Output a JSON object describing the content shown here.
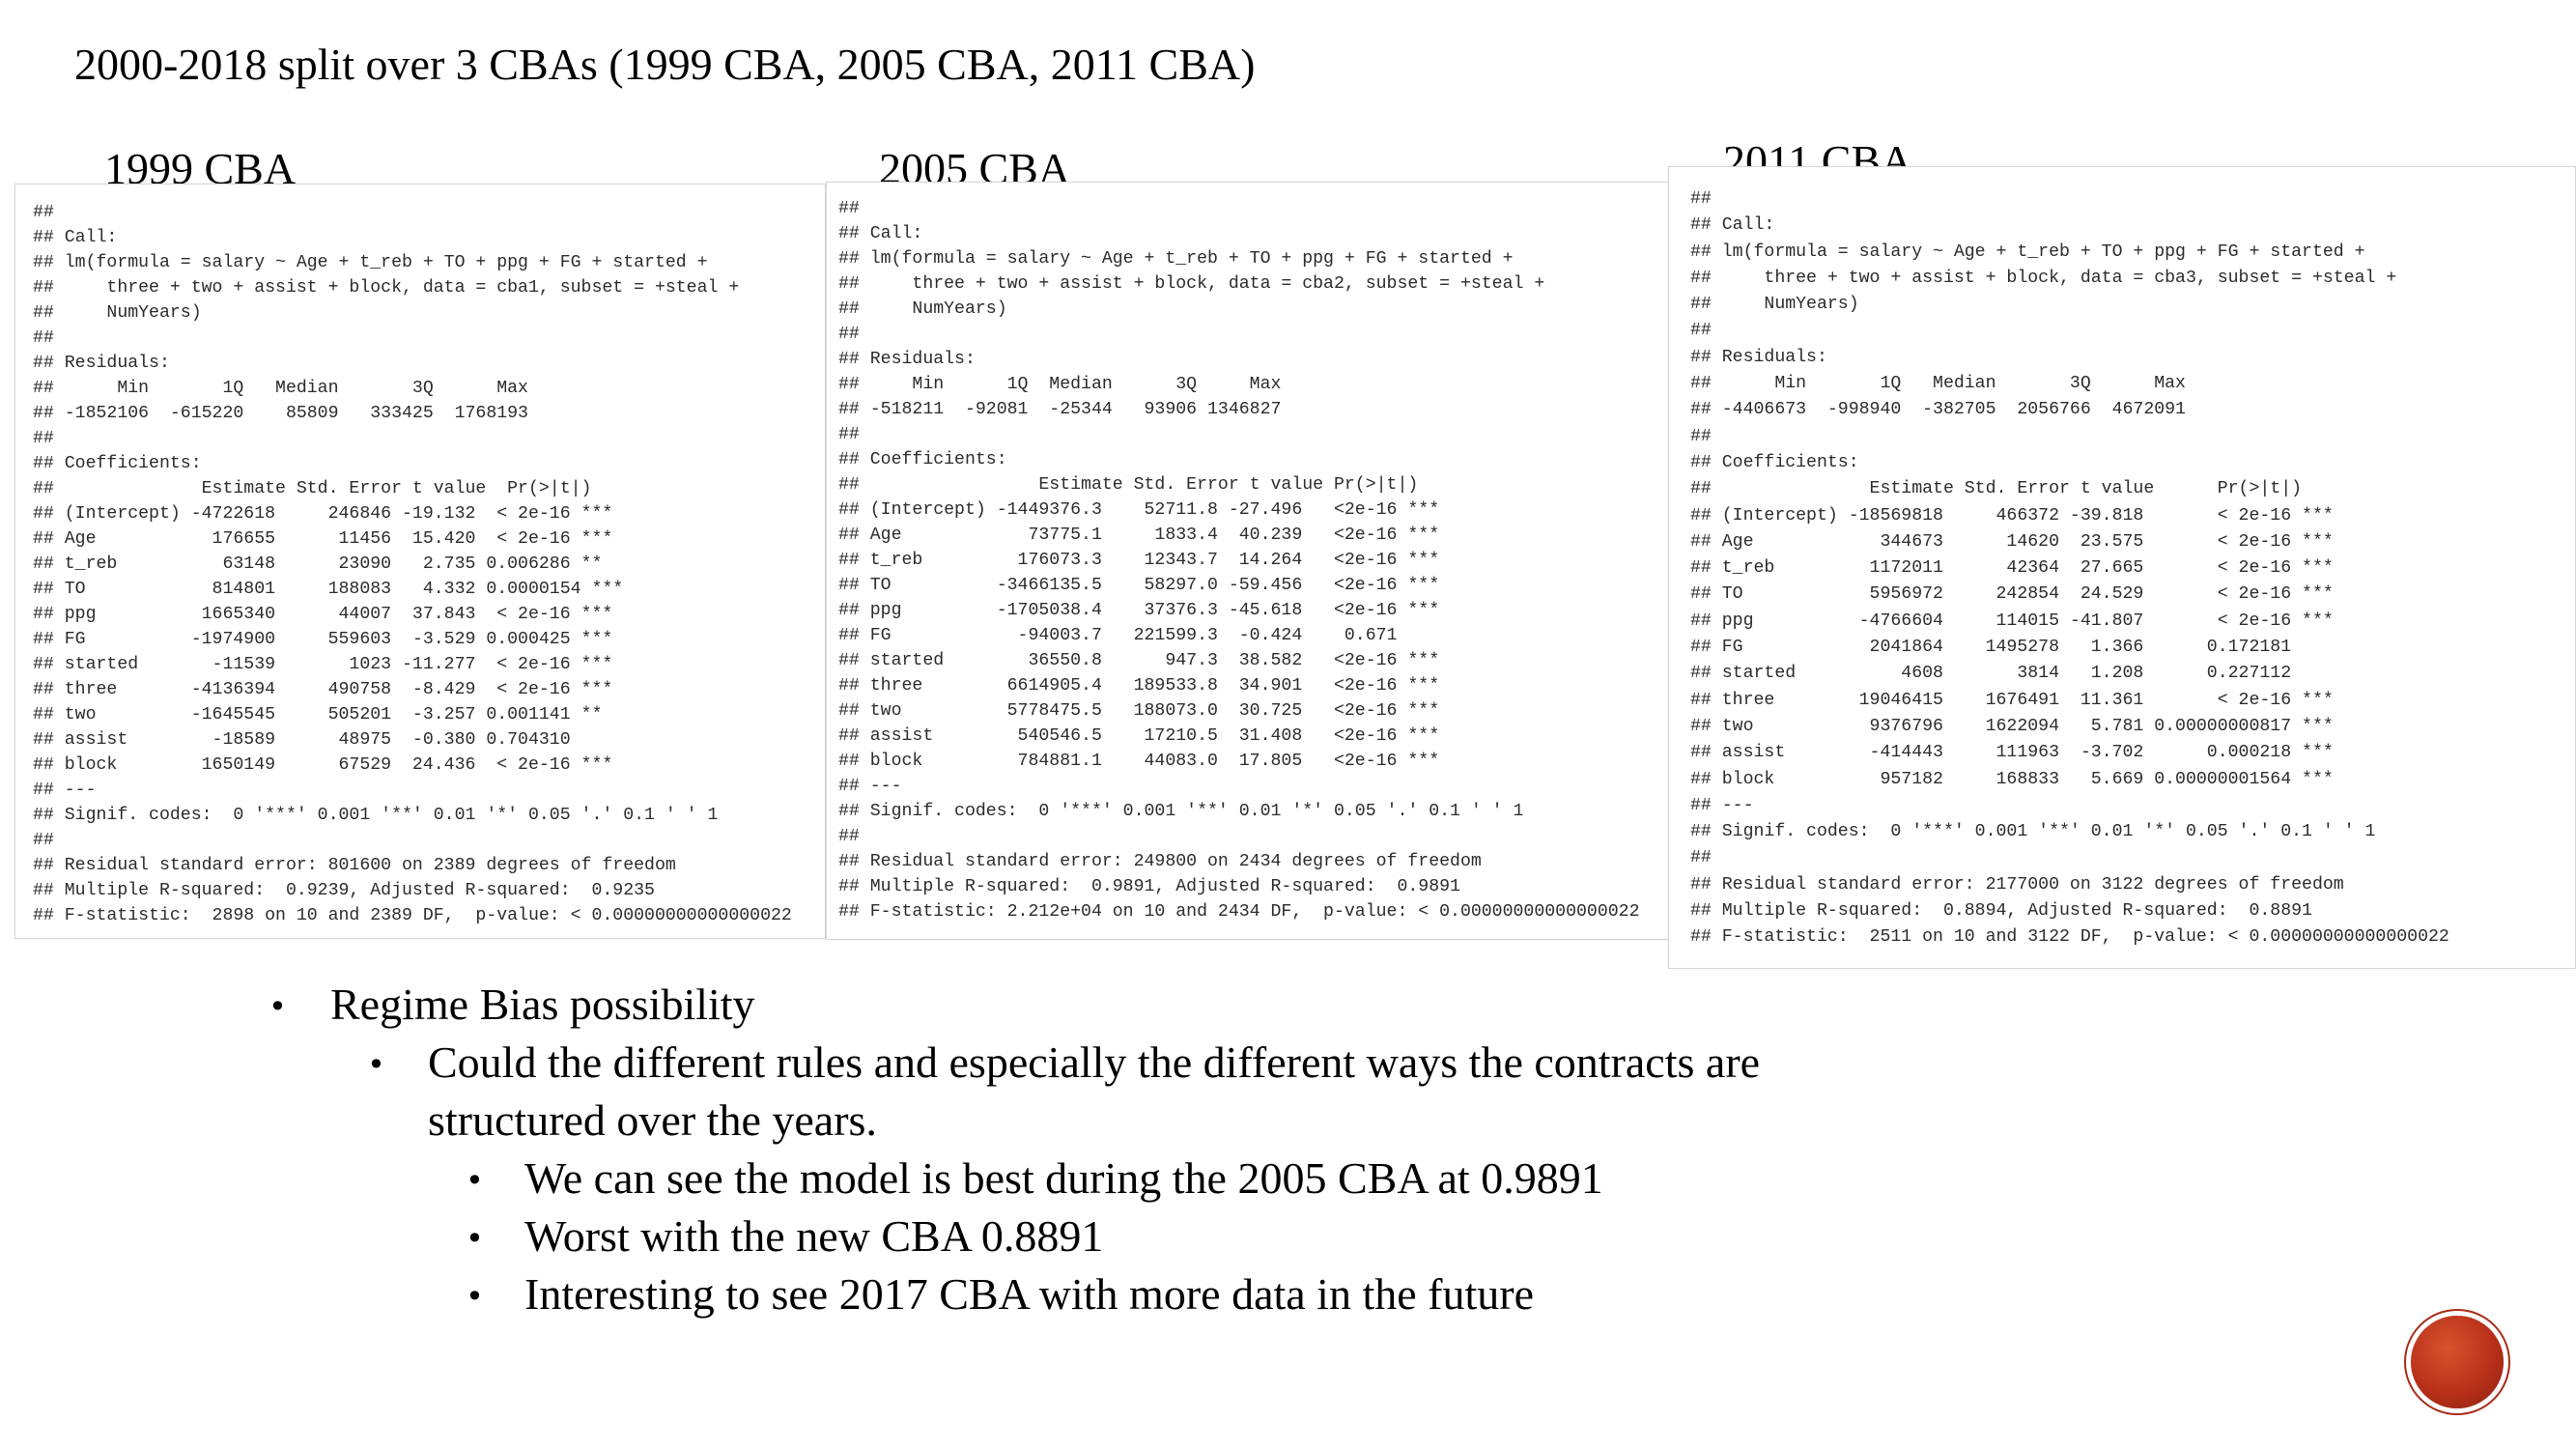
{
  "title": "2000-2018 split over 3 CBAs (1999 CBA, 2005 CBA, 2011 CBA)",
  "panels": [
    {
      "heading": "1999 CBA",
      "output": "##\n## Call:\n## lm(formula = salary ~ Age + t_reb + TO + ppg + FG + started +\n##     three + two + assist + block, data = cba1, subset = +steal +\n##     NumYears)\n##\n## Residuals:\n##      Min       1Q   Median       3Q      Max\n## -1852106  -615220    85809   333425  1768193\n##\n## Coefficients:\n##              Estimate Std. Error t value  Pr(>|t|)\n## (Intercept) -4722618     246846 -19.132  < 2e-16 ***\n## Age           176655      11456  15.420  < 2e-16 ***\n## t_reb          63148      23090   2.735 0.006286 **\n## TO            814801     188083   4.332 0.0000154 ***\n## ppg          1665340      44007  37.843  < 2e-16 ***\n## FG          -1974900     559603  -3.529 0.000425 ***\n## started       -11539       1023 -11.277  < 2e-16 ***\n## three       -4136394     490758  -8.429  < 2e-16 ***\n## two         -1645545     505201  -3.257 0.001141 **\n## assist        -18589      48975  -0.380 0.704310\n## block        1650149      67529  24.436  < 2e-16 ***\n## ---\n## Signif. codes:  0 '***' 0.001 '**' 0.01 '*' 0.05 '.' 0.1 ' ' 1\n##\n## Residual standard error: 801600 on 2389 degrees of freedom\n## Multiple R-squared:  0.9239, Adjusted R-squared:  0.9235\n## F-statistic:  2898 on 10 and 2389 DF,  p-value: < 0.00000000000000022"
    },
    {
      "heading": "2005 CBA",
      "output": "##\n## Call:\n## lm(formula = salary ~ Age + t_reb + TO + ppg + FG + started +\n##     three + two + assist + block, data = cba2, subset = +steal +\n##     NumYears)\n##\n## Residuals:\n##     Min      1Q  Median      3Q     Max\n## -518211  -92081  -25344   93906 1346827\n##\n## Coefficients:\n##                 Estimate Std. Error t value Pr(>|t|)\n## (Intercept) -1449376.3    52711.8 -27.496   <2e-16 ***\n## Age            73775.1     1833.4  40.239   <2e-16 ***\n## t_reb         176073.3    12343.7  14.264   <2e-16 ***\n## TO          -3466135.5    58297.0 -59.456   <2e-16 ***\n## ppg         -1705038.4    37376.3 -45.618   <2e-16 ***\n## FG            -94003.7   221599.3  -0.424    0.671\n## started        36550.8      947.3  38.582   <2e-16 ***\n## three        6614905.4   189533.8  34.901   <2e-16 ***\n## two          5778475.5   188073.0  30.725   <2e-16 ***\n## assist        540546.5    17210.5  31.408   <2e-16 ***\n## block         784881.1    44083.0  17.805   <2e-16 ***\n## ---\n## Signif. codes:  0 '***' 0.001 '**' 0.01 '*' 0.05 '.' 0.1 ' ' 1\n##\n## Residual standard error: 249800 on 2434 degrees of freedom\n## Multiple R-squared:  0.9891, Adjusted R-squared:  0.9891\n## F-statistic: 2.212e+04 on 10 and 2434 DF,  p-value: < 0.00000000000000022"
    },
    {
      "heading": "2011 CBA",
      "output": "##\n## Call:\n## lm(formula = salary ~ Age + t_reb + TO + ppg + FG + started +\n##     three + two + assist + block, data = cba3, subset = +steal +\n##     NumYears)\n##\n## Residuals:\n##      Min       1Q   Median       3Q      Max\n## -4406673  -998940  -382705  2056766  4672091\n##\n## Coefficients:\n##               Estimate Std. Error t value      Pr(>|t|)\n## (Intercept) -18569818     466372 -39.818       < 2e-16 ***\n## Age            344673      14620  23.575       < 2e-16 ***\n## t_reb         1172011      42364  27.665       < 2e-16 ***\n## TO            5956972     242854  24.529       < 2e-16 ***\n## ppg          -4766604     114015 -41.807       < 2e-16 ***\n## FG            2041864    1495278   1.366      0.172181\n## started          4608       3814   1.208      0.227112\n## three        19046415    1676491  11.361       < 2e-16 ***\n## two           9376796    1622094   5.781 0.00000000817 ***\n## assist        -414443     111963  -3.702      0.000218 ***\n## block          957182     168833   5.669 0.00000001564 ***\n## ---\n## Signif. codes:  0 '***' 0.001 '**' 0.01 '*' 0.05 '.' 0.1 ' ' 1\n##\n## Residual standard error: 2177000 on 3122 degrees of freedom\n## Multiple R-squared:  0.8894, Adjusted R-squared:  0.8891\n## F-statistic:  2511 on 10 and 3122 DF,  p-value: < 0.00000000000000022"
    }
  ],
  "bullets": [
    {
      "level": 1,
      "text": "Regime Bias possibility"
    },
    {
      "level": 2,
      "text": "Could the different rules and especially the different ways the contracts are"
    },
    {
      "level": 2,
      "text": "structured over the years.",
      "continuation": true
    },
    {
      "level": 3,
      "text": "We can see the model is best during the 2005 CBA at 0.9891"
    },
    {
      "level": 3,
      "text": "Worst with the new CBA 0.8891"
    },
    {
      "level": 3,
      "text": "Interesting to see 2017 CBA with more data in the future"
    }
  ],
  "bullet_symbol": "•",
  "colors": {
    "background": "#ffffff",
    "text": "#000000",
    "code_text": "#2b2b2b",
    "logo": "#b8301a"
  }
}
